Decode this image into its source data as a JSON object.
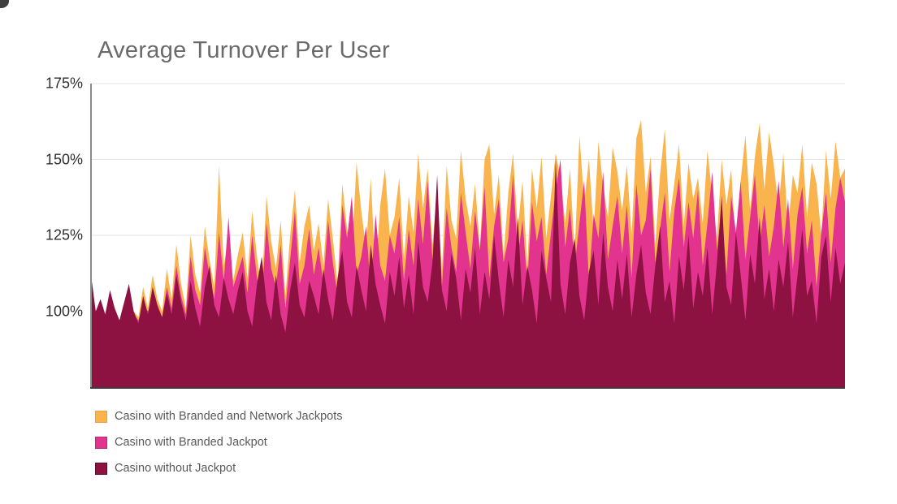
{
  "title": "Average Turnover Per User",
  "colors": {
    "background": "#ffffff",
    "title_text": "#6a6a6a",
    "axis_label_text": "#2e2e2e",
    "legend_text": "#595959",
    "gridline": "#e3e3e3",
    "y_axis_line": "#8c8c8c",
    "baseline": "#3c3c3c"
  },
  "chart_data": {
    "type": "area",
    "mode": "overlaid-not-stacked-drawn-back-to-front",
    "title": "Average Turnover Per User",
    "xlabel": "",
    "ylabel": "",
    "grid": true,
    "legend_position": "bottom-left",
    "y_axis": {
      "unit": "%",
      "min": 75,
      "max": 175,
      "tick_values": [
        175,
        150,
        125,
        100
      ],
      "tick_labels": [
        "175%",
        "150%",
        "125%",
        "100%"
      ],
      "gridline_values": [
        175,
        150,
        125
      ]
    },
    "x_axis": {
      "tick_labels_visible": false,
      "n_points": 160
    },
    "series": [
      {
        "name": "Casino with Branded and Network Jackpots",
        "color": "#F9B44E",
        "swatch_border": "#eda23c",
        "values": [
          105,
          100,
          102,
          98,
          104,
          101,
          97,
          103,
          106,
          100,
          98,
          108,
          101,
          112,
          104,
          100,
          114,
          104,
          122,
          109,
          101,
          125,
          112,
          106,
          128,
          117,
          108,
          148,
          115,
          124,
          110,
          119,
          126,
          111,
          133,
          118,
          107,
          138,
          123,
          114,
          130,
          105,
          125,
          140,
          116,
          128,
          135,
          120,
          129,
          115,
          137,
          124,
          109,
          142,
          127,
          119,
          149,
          133,
          121,
          144,
          112,
          135,
          147,
          125,
          131,
          144,
          117,
          138,
          126,
          152,
          134,
          147,
          122,
          140,
          113,
          148,
          130,
          124,
          153,
          137,
          128,
          142,
          121,
          150,
          155,
          132,
          145,
          118,
          139,
          152,
          127,
          143,
          115,
          147,
          134,
          151,
          124,
          138,
          152,
          144,
          129,
          147,
          119,
          158,
          136,
          150,
          126,
          156,
          141,
          131,
          154,
          146,
          133,
          148,
          125,
          157,
          163,
          139,
          151,
          122,
          145,
          160,
          130,
          142,
          155,
          128,
          149,
          137,
          144,
          129,
          153,
          138,
          124,
          150,
          135,
          147,
          120,
          143,
          158,
          133,
          151,
          162,
          140,
          159,
          148,
          134,
          152,
          127,
          145,
          139,
          155,
          131,
          149,
          142,
          125,
          153,
          137,
          156,
          144,
          147
        ]
      },
      {
        "name": "Casino with Branded Jackpot",
        "color": "#E2348E",
        "swatch_border": "#c32579",
        "values": [
          103,
          99,
          101,
          97,
          102,
          100,
          96,
          101,
          104,
          99,
          97,
          102,
          100,
          103,
          101,
          98,
          108,
          101,
          115,
          105,
          99,
          118,
          107,
          102,
          121,
          112,
          104,
          126,
          110,
          131,
          108,
          113,
          118,
          106,
          125,
          111,
          103,
          129,
          114,
          108,
          122,
          101,
          117,
          133,
          109,
          115,
          127,
          112,
          121,
          109,
          130,
          116,
          105,
          135,
          124,
          138,
          112,
          118,
          128,
          107,
          132,
          115,
          110,
          125,
          119,
          131,
          110,
          127,
          115,
          137,
          122,
          143,
          117,
          129,
          108,
          134,
          121,
          113,
          139,
          126,
          114,
          133,
          120,
          141,
          111,
          128,
          137,
          116,
          124,
          145,
          118,
          130,
          109,
          136,
          123,
          131,
          112,
          126,
          140,
          150,
          121,
          134,
          115,
          129,
          143,
          110,
          132,
          124,
          146,
          117,
          128,
          138,
          119,
          135,
          111,
          142,
          125,
          130,
          147,
          116,
          127,
          139,
          113,
          133,
          144,
          121,
          136,
          124,
          140,
          115,
          129,
          146,
          120,
          134,
          112,
          138,
          126,
          143,
          117,
          131,
          145,
          122,
          135,
          118,
          128,
          143,
          121,
          137,
          114,
          132,
          141,
          119,
          130,
          108,
          126,
          139,
          116,
          134,
          144,
          136
        ]
      },
      {
        "name": "Casino without Jackpot",
        "color": "#8D1241",
        "swatch_border": "#5f0c2b",
        "values": [
          112,
          100,
          104,
          99,
          107,
          101,
          97,
          103,
          109,
          100,
          96,
          105,
          99,
          108,
          102,
          98,
          106,
          99,
          112,
          103,
          97,
          110,
          101,
          95,
          108,
          115,
          102,
          98,
          111,
          104,
          99,
          107,
          113,
          100,
          95,
          109,
          118,
          103,
          97,
          112,
          99,
          93,
          107,
          116,
          102,
          98,
          110,
          105,
          99,
          114,
          104,
          97,
          111,
          120,
          103,
          98,
          115,
          107,
          100,
          122,
          109,
          102,
          96,
          113,
          105,
          118,
          101,
          112,
          99,
          123,
          108,
          103,
          116,
          145,
          107,
          100,
          119,
          111,
          97,
          114,
          106,
          121,
          99,
          113,
          104,
          125,
          110,
          98,
          117,
          108,
          131,
          102,
          115,
          107,
          96,
          120,
          111,
          103,
          150,
          109,
          99,
          116,
          124,
          105,
          97,
          113,
          120,
          102,
          126,
          108,
          100,
          117,
          104,
          119,
          98,
          112,
          122,
          106,
          99,
          115,
          128,
          103,
          110,
          96,
          118,
          107,
          125,
          101,
          113,
          105,
          121,
          99,
          116,
          138,
          108,
          102,
          126,
          112,
          97,
          119,
          109,
          131,
          104,
          114,
          100,
          117,
          108,
          123,
          98,
          112,
          127,
          105,
          110,
          96,
          118,
          125,
          103,
          121,
          109,
          116
        ]
      }
    ]
  }
}
